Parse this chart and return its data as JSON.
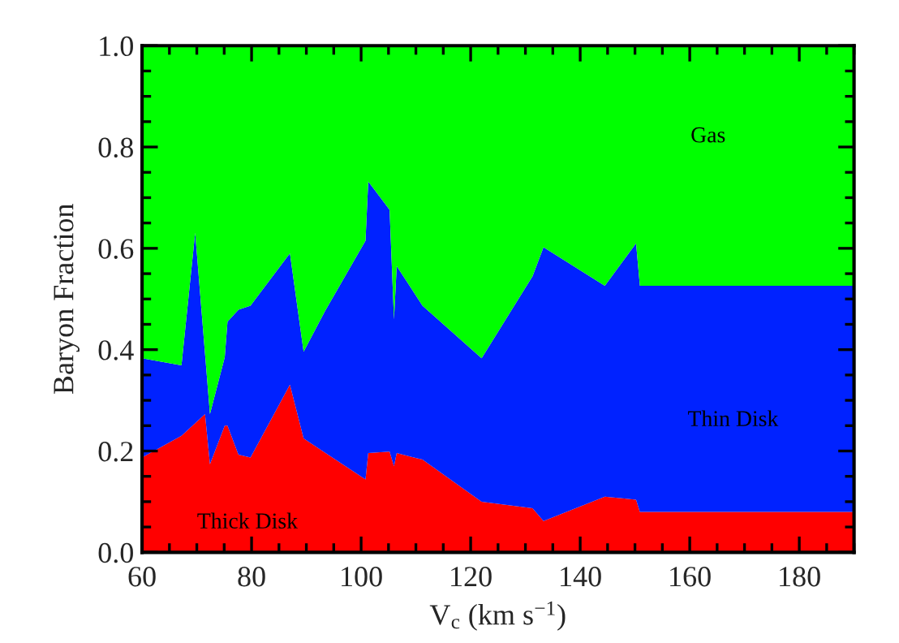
{
  "chart_data": {
    "type": "area",
    "stacked": true,
    "xlabel": "V$_{c}$ (km s$^{−1}$)",
    "ylabel": "Baryon Fraction",
    "x": [
      60,
      67.2,
      69.7,
      71.5,
      72.4,
      75.1,
      75.6,
      77.6,
      79.8,
      87.0,
      89.5,
      93.4,
      100.8,
      101.3,
      105.2,
      106.0,
      106.5,
      111.2,
      122.0,
      131.3,
      133.3,
      144.5,
      150.2,
      150.9,
      190
    ],
    "series": [
      {
        "name": "Thick Disk",
        "color": "#ff0000",
        "values": [
          0.187,
          0.23,
          0.255,
          0.273,
          0.174,
          0.25,
          0.25,
          0.193,
          0.187,
          0.331,
          0.225,
          0.197,
          0.144,
          0.196,
          0.199,
          0.17,
          0.196,
          0.183,
          0.1,
          0.087,
          0.062,
          0.11,
          0.104,
          0.08,
          0.08
        ]
      },
      {
        "name": "Thin Disk",
        "color": "#0022ff",
        "values": [
          0.196,
          0.139,
          0.376,
          0.119,
          0.099,
          0.135,
          0.205,
          0.286,
          0.3,
          0.259,
          0.171,
          0.279,
          0.471,
          0.536,
          0.477,
          0.29,
          0.369,
          0.304,
          0.283,
          0.458,
          0.54,
          0.416,
          0.506,
          0.446,
          0.446
        ]
      },
      {
        "name": "Gas",
        "color": "#00ff00",
        "values": [
          0.617,
          0.631,
          0.369,
          0.608,
          0.727,
          0.615,
          0.545,
          0.521,
          0.513,
          0.41,
          0.604,
          0.524,
          0.385,
          0.268,
          0.324,
          0.54,
          0.435,
          0.513,
          0.617,
          0.455,
          0.398,
          0.474,
          0.39,
          0.474,
          0.474
        ]
      }
    ],
    "xlim": [
      60,
      190
    ],
    "xticks": [
      60,
      80,
      100,
      120,
      140,
      160,
      180
    ],
    "ylim": [
      0,
      1
    ],
    "yticks": [
      {
        "value": 0,
        "label": "0.0"
      },
      {
        "value": 0.2,
        "label": "0.2"
      },
      {
        "value": 0.4,
        "label": "0.4"
      },
      {
        "value": 0.6,
        "label": "0.6"
      },
      {
        "value": 0.8,
        "label": "0.8"
      },
      {
        "value": 1,
        "label": "1.0"
      }
    ],
    "grid": false,
    "legend": false
  }
}
